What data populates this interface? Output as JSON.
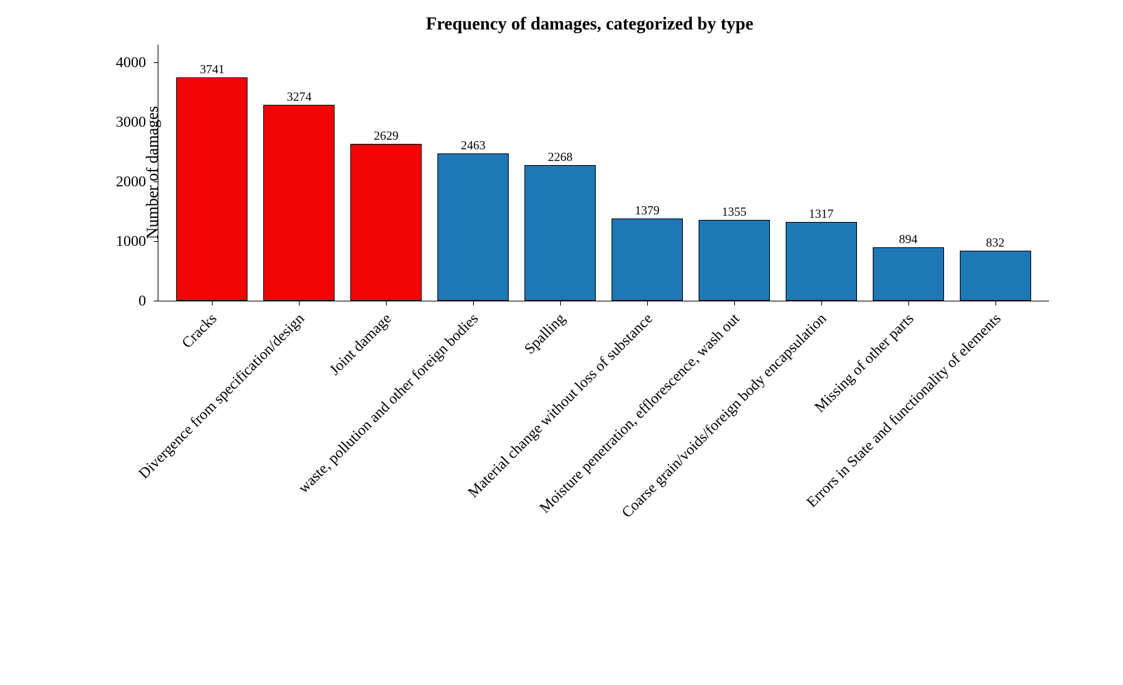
{
  "chart": {
    "type": "bar",
    "title": "Frequency of damages, categorized by type",
    "title_fontsize": 26,
    "ylabel": "Number of damages",
    "ylabel_fontsize": 24,
    "tick_fontsize": 22,
    "value_label_fontsize": 18,
    "x_label_fontsize": 22,
    "ylim": [
      0,
      4300
    ],
    "yticks": [
      0,
      1000,
      2000,
      3000,
      4000
    ],
    "categories": [
      "Cracks",
      "Divergence from specification/design",
      "Joint damage",
      "waste, pollution and other foreign bodies",
      "Spalling",
      "Material change without loss of substance",
      "Moisture penetration, efflorescence, wash out",
      "Coarse grain/voids/foreign body encapsulation",
      "Missing of other parts",
      "Errors in State and functionality of elements"
    ],
    "values": [
      3741,
      3274,
      2629,
      2463,
      2268,
      1379,
      1355,
      1317,
      894,
      832
    ],
    "bar_colors": [
      "#f20505",
      "#f20505",
      "#f20505",
      "#1e78b4",
      "#1e78b4",
      "#1e78b4",
      "#1e78b4",
      "#1e78b4",
      "#1e78b4",
      "#1e78b4"
    ],
    "bar_border_color": "#000000",
    "background_color": "#ffffff",
    "axis_color": "#000000",
    "bar_width": 0.82
  }
}
